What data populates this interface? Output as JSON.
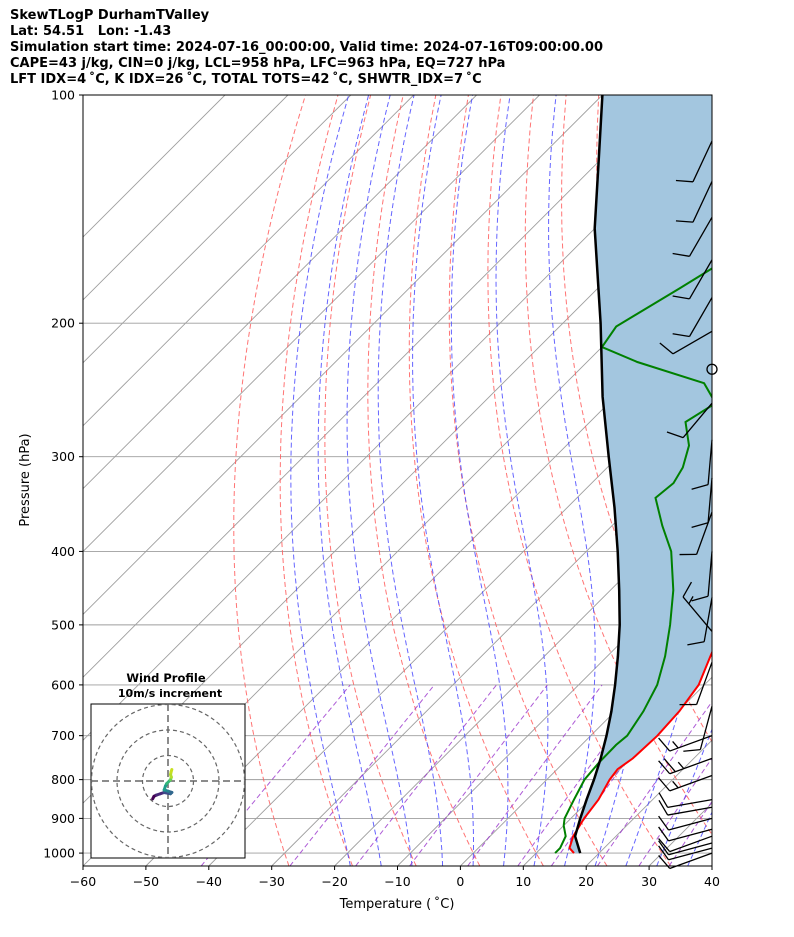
{
  "header": {
    "line1": "SkewTLogP DurhamTValley",
    "line2": "Lat: 54.51   Lon: -1.43",
    "line3": "Simulation start time: 2024-07-16_00:00:00, Valid time: 2024-07-16T09:00:00.00",
    "line4": "CAPE=43 j/kg, CIN=0 j/kg, LCL=958 hPa, LFC=963 hPa, EQ=727 hPa",
    "line5": "LFT IDX=4 ˚C, K IDX=26 ˚C, TOTAL TOTS=42 ˚C, SHWTR_IDX=7 ˚C"
  },
  "chart_data": [
    {
      "type": "line",
      "subtype": "skew-t log-p",
      "xlabel": "Temperature ( ˚C)",
      "ylabel": "Pressure (hPa)",
      "xlim": [
        -60,
        40
      ],
      "ylim": [
        1040,
        100
      ],
      "y_scale": "log",
      "x_ticks": [
        -60,
        -50,
        -40,
        -30,
        -20,
        -10,
        0,
        10,
        20,
        30,
        40
      ],
      "y_ticks": [
        100,
        200,
        300,
        400,
        500,
        600,
        700,
        800,
        900,
        1000
      ],
      "grid": true,
      "colors": {
        "temperature": "#ff0000",
        "dewpoint": "#008000",
        "parcel": "#000000",
        "cape_fill": "#a3c6df",
        "dry_adiabat": "#ff5c5c",
        "moist_adiabat": "#4a4aff",
        "mixing_ratio": "#9932cc",
        "isotherm": "#9e9e9e"
      },
      "series": [
        {
          "name": "temperature",
          "points": [
            [
              1000,
              16
            ],
            [
              985,
              14.5
            ],
            [
              950,
              13.2
            ],
            [
              900,
              12.1
            ],
            [
              850,
              11.4
            ],
            [
              800,
              10.0
            ],
            [
              775,
              9.6
            ],
            [
              750,
              10.3
            ],
            [
              700,
              10.6
            ],
            [
              650,
              10.2
            ],
            [
              600,
              9.1
            ],
            [
              550,
              6.4
            ],
            [
              500,
              3.6
            ],
            [
              450,
              -0.2
            ],
            [
              400,
              -4.1
            ],
            [
              350,
              -9.0
            ],
            [
              300,
              -15.3
            ],
            [
              280,
              -18.0
            ],
            [
              265,
              -19.5
            ],
            [
              250,
              -18.6
            ],
            [
              225,
              -14.0
            ],
            [
              200,
              -10.2
            ],
            [
              185,
              -8.0
            ],
            [
              170,
              -6.5
            ],
            [
              150,
              -5.0
            ],
            [
              130,
              -3.5
            ],
            [
              115,
              -3.0
            ],
            [
              100,
              -3.0
            ]
          ]
        },
        {
          "name": "dewpoint",
          "points": [
            [
              1000,
              13.0
            ],
            [
              985,
              13.0
            ],
            [
              950,
              12.0
            ],
            [
              920,
              10.0
            ],
            [
              900,
              9.0
            ],
            [
              850,
              7.5
            ],
            [
              800,
              6.0
            ],
            [
              760,
              5.6
            ],
            [
              720,
              5.5
            ],
            [
              700,
              5.8
            ],
            [
              650,
              4.5
            ],
            [
              600,
              2.5
            ],
            [
              550,
              -0.8
            ],
            [
              500,
              -5.0
            ],
            [
              450,
              -10.0
            ],
            [
              400,
              -16.5
            ],
            [
              370,
              -22.0
            ],
            [
              340,
              -27.5
            ],
            [
              325,
              -27.0
            ],
            [
              310,
              -28.0
            ],
            [
              290,
              -30.5
            ],
            [
              270,
              -34.8
            ],
            [
              255,
              -33.0
            ],
            [
              240,
              -38.0
            ],
            [
              225,
              -52.0
            ],
            [
              215,
              -60.0
            ],
            [
              202,
              -61.0
            ],
            [
              180,
              -57.0
            ],
            [
              150,
              -51.0
            ],
            [
              125,
              -47.0
            ],
            [
              100,
              -42.0
            ]
          ]
        },
        {
          "name": "parcel",
          "points": [
            [
              1000,
              17
            ],
            [
              950,
              13.5
            ],
            [
              900,
              11.5
            ],
            [
              850,
              9.5
            ],
            [
              800,
              7.5
            ],
            [
              750,
              5.2
            ],
            [
              700,
              2.5
            ],
            [
              650,
              -0.6
            ],
            [
              600,
              -4.2
            ],
            [
              550,
              -8.3
            ],
            [
              500,
              -13.0
            ],
            [
              450,
              -18.6
            ],
            [
              400,
              -25.0
            ],
            [
              350,
              -32.5
            ],
            [
              300,
              -41.5
            ],
            [
              250,
              -52.0
            ],
            [
              200,
              -64.0
            ],
            [
              150,
              -80.0
            ],
            [
              120,
              -91.0
            ],
            [
              100,
              -100.0
            ]
          ]
        }
      ],
      "wind_barbs": [
        {
          "p": 1000,
          "speed_kt": 10,
          "dir": 250
        },
        {
          "p": 985,
          "speed_kt": 10,
          "dir": 255
        },
        {
          "p": 970,
          "speed_kt": 10,
          "dir": 255
        },
        {
          "p": 950,
          "speed_kt": 10,
          "dir": 250
        },
        {
          "p": 930,
          "speed_kt": 10,
          "dir": 255
        },
        {
          "p": 900,
          "speed_kt": 10,
          "dir": 255
        },
        {
          "p": 870,
          "speed_kt": 10,
          "dir": 260
        },
        {
          "p": 850,
          "speed_kt": 10,
          "dir": 260
        },
        {
          "p": 790,
          "speed_kt": 15,
          "dir": 250
        },
        {
          "p": 750,
          "speed_kt": 25,
          "dir": 250
        },
        {
          "p": 700,
          "speed_kt": 15,
          "dir": 250
        },
        {
          "p": 640,
          "speed_kt": 10,
          "dir": 195
        },
        {
          "p": 560,
          "speed_kt": 10,
          "dir": 200
        },
        {
          "p": 510,
          "speed_kt": 15,
          "dir": 320
        },
        {
          "p": 460,
          "speed_kt": 10,
          "dir": 190
        },
        {
          "p": 400,
          "speed_kt": 10,
          "dir": 185
        },
        {
          "p": 355,
          "speed_kt": 10,
          "dir": 200
        },
        {
          "p": 320,
          "speed_kt": 10,
          "dir": 185
        },
        {
          "p": 285,
          "speed_kt": 10,
          "dir": 185
        },
        {
          "p": 255,
          "speed_kt": 10,
          "dir": 220
        },
        {
          "p": 230,
          "speed_kt": 0,
          "dir": 0
        },
        {
          "p": 205,
          "speed_kt": 10,
          "dir": 240
        },
        {
          "p": 185,
          "speed_kt": 10,
          "dir": 210
        },
        {
          "p": 165,
          "speed_kt": 10,
          "dir": 210
        },
        {
          "p": 145,
          "speed_kt": 10,
          "dir": 210
        },
        {
          "p": 130,
          "speed_kt": 10,
          "dir": 205
        },
        {
          "p": 115,
          "speed_kt": 10,
          "dir": 205
        }
      ]
    },
    {
      "type": "scatter",
      "subtype": "hodograph",
      "title": "Wind Profile",
      "subtitle": "10m/s increment",
      "rings_ms": [
        10,
        20,
        30
      ],
      "points_ms": [
        [
          -6.0,
          -7.0
        ],
        [
          -5.5,
          -6.0
        ],
        [
          -4.5,
          -5.5
        ],
        [
          -3.0,
          -5.0
        ],
        [
          -1.5,
          -4.5
        ],
        [
          1.0,
          -5.0
        ],
        [
          1.5,
          -4.5
        ],
        [
          0.0,
          -4.0
        ],
        [
          -1.5,
          -3.5
        ],
        [
          -1.0,
          -2.0
        ],
        [
          -0.5,
          -1.0
        ],
        [
          0.5,
          0.0
        ],
        [
          1.0,
          0.5
        ],
        [
          1.3,
          1.5
        ],
        [
          1.0,
          2.5
        ],
        [
          1.2,
          3.5
        ],
        [
          1.5,
          4.5
        ]
      ]
    }
  ]
}
